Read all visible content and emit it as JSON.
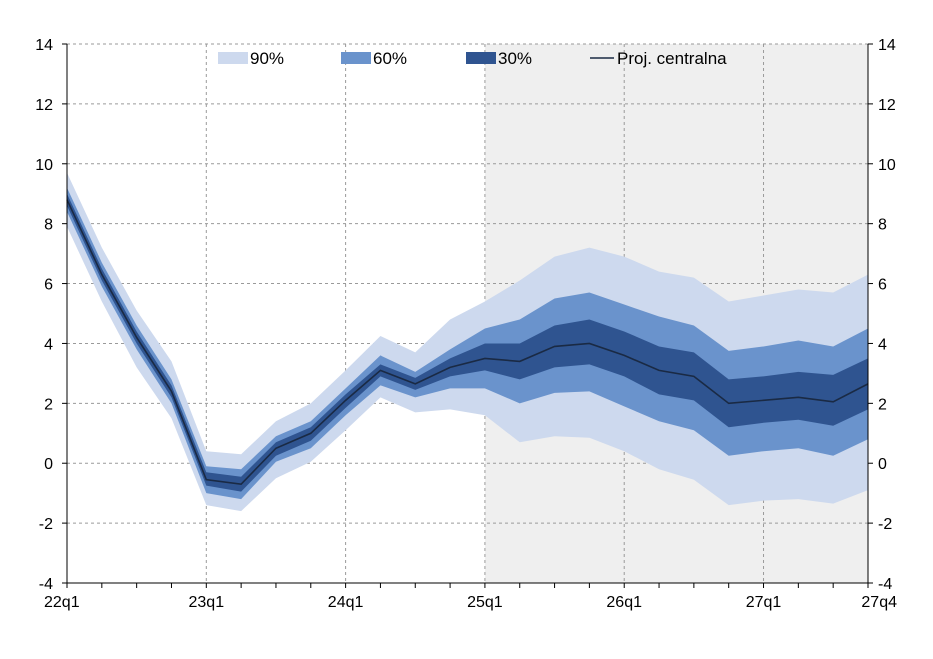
{
  "chart_data": {
    "type": "area",
    "title": "",
    "xlabel": "",
    "ylabel": "",
    "x": [
      "22q1",
      "22q2",
      "22q3",
      "22q4",
      "23q1",
      "23q2",
      "23q3",
      "23q4",
      "24q1",
      "24q2",
      "24q3",
      "24q4",
      "25q1",
      "25q2",
      "25q3",
      "25q4",
      "26q1",
      "26q2",
      "26q3",
      "26q4",
      "27q1",
      "27q2",
      "27q3",
      "27q4"
    ],
    "x_tick_labels": [
      "22q1",
      "23q1",
      "24q1",
      "25q1",
      "26q1",
      "27q1",
      "27q4"
    ],
    "ylim": [
      -4,
      14
    ],
    "y_ticks": [
      "-4",
      "-2",
      "0",
      "2",
      "4",
      "6",
      "8",
      "10",
      "12",
      "14"
    ],
    "grid": true,
    "legend_position": "top",
    "projection_shading_start": "25q1",
    "colors": {
      "band90": "#cdd9ee",
      "band60": "#6a93cc",
      "band30": "#2f5490",
      "central": "#1a2a44",
      "projection_bg": "#efefef",
      "grid": "#9a9a9a"
    },
    "legend": [
      {
        "key": "band90",
        "label": "90%"
      },
      {
        "key": "band60",
        "label": "60%"
      },
      {
        "key": "band30",
        "label": "30%"
      },
      {
        "key": "central",
        "label": "Proj. centralna"
      }
    ],
    "central": [
      8.8,
      6.3,
      4.2,
      2.4,
      -0.55,
      -0.7,
      0.5,
      1.0,
      2.1,
      3.1,
      2.65,
      3.2,
      3.5,
      3.4,
      3.9,
      4.0,
      3.6,
      3.1,
      2.9,
      2.0,
      2.1,
      2.2,
      2.05,
      2.65
    ],
    "band30_upper": [
      9.0,
      6.5,
      4.4,
      2.6,
      -0.3,
      -0.45,
      0.7,
      1.2,
      2.3,
      3.3,
      2.85,
      3.5,
      4.0,
      4.0,
      4.6,
      4.8,
      4.4,
      3.9,
      3.7,
      2.8,
      2.9,
      3.05,
      2.95,
      3.5
    ],
    "band30_lower": [
      8.6,
      6.1,
      4.0,
      2.2,
      -0.75,
      -0.95,
      0.25,
      0.75,
      1.85,
      2.9,
      2.45,
      2.9,
      3.1,
      2.8,
      3.2,
      3.3,
      2.9,
      2.3,
      2.1,
      1.2,
      1.35,
      1.45,
      1.25,
      1.8
    ],
    "band60_upper": [
      9.2,
      6.7,
      4.6,
      2.8,
      -0.1,
      -0.2,
      0.9,
      1.4,
      2.5,
      3.6,
      3.05,
      3.8,
      4.5,
      4.8,
      5.5,
      5.7,
      5.3,
      4.9,
      4.6,
      3.75,
      3.9,
      4.1,
      3.9,
      4.5
    ],
    "band60_lower": [
      8.4,
      5.9,
      3.8,
      2.0,
      -1.0,
      -1.2,
      0.05,
      0.5,
      1.6,
      2.6,
      2.2,
      2.5,
      2.5,
      2.0,
      2.35,
      2.4,
      1.9,
      1.4,
      1.1,
      0.25,
      0.4,
      0.5,
      0.25,
      0.8
    ],
    "band90_upper": [
      9.7,
      7.2,
      5.1,
      3.4,
      0.4,
      0.3,
      1.4,
      2.0,
      3.1,
      4.25,
      3.7,
      4.8,
      5.4,
      6.1,
      6.9,
      7.2,
      6.9,
      6.4,
      6.2,
      5.4,
      5.6,
      5.8,
      5.7,
      6.3
    ],
    "band90_lower": [
      7.9,
      5.4,
      3.2,
      1.5,
      -1.4,
      -1.6,
      -0.5,
      0.05,
      1.1,
      2.2,
      1.7,
      1.8,
      1.6,
      0.7,
      0.9,
      0.85,
      0.4,
      -0.2,
      -0.55,
      -1.4,
      -1.25,
      -1.2,
      -1.35,
      -0.9
    ]
  }
}
